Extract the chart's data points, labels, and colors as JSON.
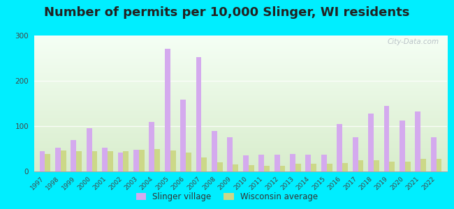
{
  "title": "Number of permits per 10,000 Slinger, WI residents",
  "years": [
    1997,
    1998,
    1999,
    2000,
    2001,
    2002,
    2003,
    2004,
    2005,
    2006,
    2007,
    2008,
    2009,
    2010,
    2011,
    2012,
    2013,
    2014,
    2015,
    2016,
    2017,
    2018,
    2019,
    2020,
    2021,
    2022
  ],
  "slinger": [
    45,
    53,
    70,
    95,
    52,
    42,
    48,
    110,
    270,
    158,
    252,
    90,
    75,
    35,
    37,
    37,
    38,
    37,
    37,
    105,
    75,
    128,
    145,
    112,
    133,
    75
  ],
  "wisconsin": [
    38,
    46,
    45,
    44,
    44,
    44,
    48,
    50,
    46,
    41,
    31,
    20,
    15,
    14,
    12,
    12,
    17,
    17,
    17,
    18,
    25,
    25,
    22,
    22,
    28,
    28
  ],
  "slinger_color": "#d4aaee",
  "wisconsin_color": "#ccd888",
  "background_top": "#f5fff5",
  "background_bottom": "#d8edcc",
  "outer_bg": "#00eeff",
  "ylim": [
    0,
    300
  ],
  "yticks": [
    0,
    100,
    200,
    300
  ],
  "grid_color": "#e8e8e8",
  "title_fontsize": 13,
  "title_color": "#222222",
  "watermark": "City-Data.com",
  "legend_slinger": "Slinger village",
  "legend_wisconsin": "Wisconsin average"
}
